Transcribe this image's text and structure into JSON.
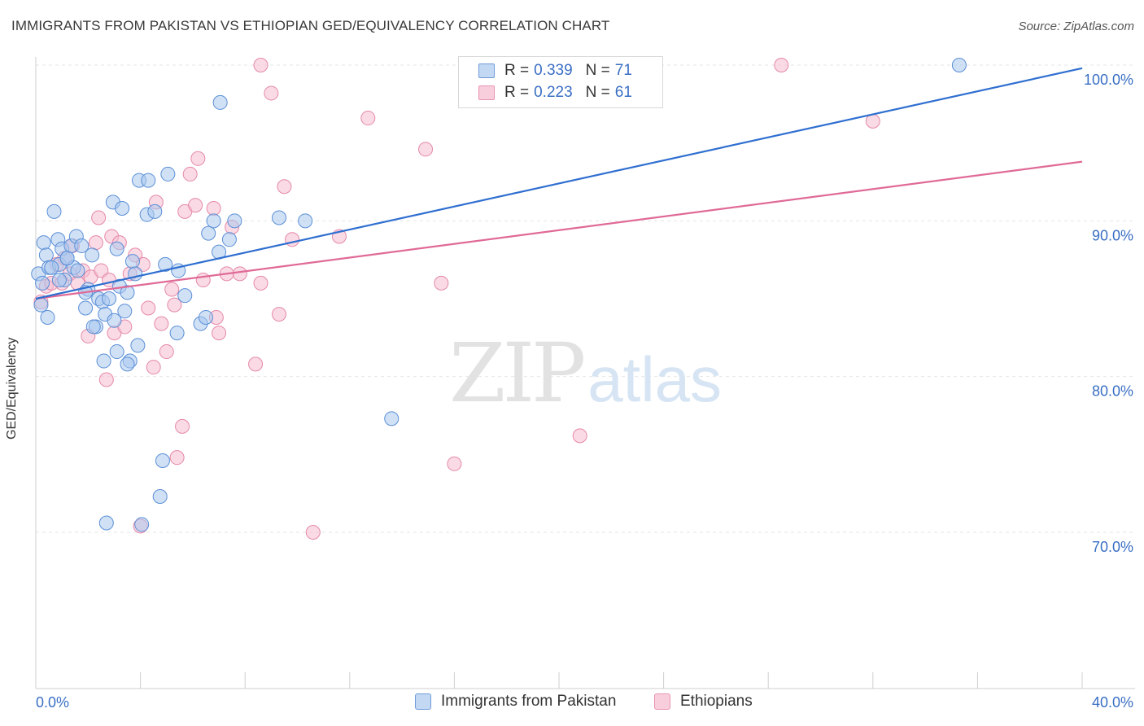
{
  "header": {
    "title": "IMMIGRANTS FROM PAKISTAN VS ETHIOPIAN GED/EQUIVALENCY CORRELATION CHART",
    "source": "Source: ZipAtlas.com"
  },
  "watermark": {
    "zip": "ZIP",
    "atlas": "atlas"
  },
  "legend": {
    "rows": [
      {
        "r_label": "R =",
        "r_value": "0.339",
        "n_label": "N =",
        "n_value": "71"
      },
      {
        "r_label": "R =",
        "r_value": "0.223",
        "n_label": "N =",
        "n_value": "61"
      }
    ]
  },
  "colors": {
    "pakistan_fill": "#a9c8ee",
    "pakistan_stroke": "#5b8fd6",
    "pakistan_line": "#2f6fd0",
    "ethiopian_fill": "#f5bcd0",
    "ethiopian_stroke": "#e589a9",
    "ethiopian_line": "#e06a97",
    "tick_label": "#3a6fc4",
    "grid": "#e6e6e6"
  },
  "chart_data": {
    "type": "scatter",
    "title": "IMMIGRANTS FROM PAKISTAN VS ETHIOPIAN GED/EQUIVALENCY CORRELATION CHART",
    "xlabel": "",
    "ylabel": "GED/Equivalency",
    "xlim": [
      0,
      40
    ],
    "ylim": [
      60,
      102
    ],
    "x_tick_labels": [
      "0.0%",
      "40.0%"
    ],
    "y_ticks": [
      70,
      80,
      90,
      100
    ],
    "y_tick_labels": [
      "70.0%",
      "80.0%",
      "90.0%",
      "100.0%"
    ],
    "grid": true,
    "legend_position": "top-center",
    "series": [
      {
        "name": "Immigrants from Pakistan",
        "r": 0.339,
        "n": 71,
        "trend": {
          "x": [
            0,
            40
          ],
          "y": [
            85.0,
            99.8
          ]
        },
        "points": [
          [
            0.1,
            86.6
          ],
          [
            0.2,
            84.6
          ],
          [
            0.25,
            86.0
          ],
          [
            0.3,
            88.6
          ],
          [
            0.4,
            87.8
          ],
          [
            0.45,
            83.8
          ],
          [
            0.5,
            87.0
          ],
          [
            0.7,
            90.6
          ],
          [
            0.85,
            88.8
          ],
          [
            0.9,
            87.2
          ],
          [
            1.0,
            88.2
          ],
          [
            1.1,
            86.2
          ],
          [
            1.2,
            87.6
          ],
          [
            1.35,
            88.4
          ],
          [
            1.45,
            87.0
          ],
          [
            1.55,
            89.0
          ],
          [
            1.6,
            86.8
          ],
          [
            1.75,
            88.4
          ],
          [
            1.9,
            84.4
          ],
          [
            2.0,
            85.6
          ],
          [
            2.15,
            87.8
          ],
          [
            2.3,
            83.2
          ],
          [
            2.4,
            85.0
          ],
          [
            2.55,
            84.8
          ],
          [
            2.65,
            84.0
          ],
          [
            2.8,
            85.0
          ],
          [
            2.95,
            91.2
          ],
          [
            3.0,
            83.6
          ],
          [
            3.1,
            81.6
          ],
          [
            3.2,
            85.8
          ],
          [
            3.3,
            90.8
          ],
          [
            3.4,
            84.2
          ],
          [
            3.5,
            85.4
          ],
          [
            3.6,
            81.0
          ],
          [
            3.7,
            87.4
          ],
          [
            3.8,
            86.6
          ],
          [
            3.9,
            82.0
          ],
          [
            3.95,
            92.6
          ],
          [
            4.05,
            70.5
          ],
          [
            4.25,
            90.4
          ],
          [
            4.3,
            92.6
          ],
          [
            4.55,
            90.6
          ],
          [
            4.75,
            72.3
          ],
          [
            4.85,
            74.6
          ],
          [
            4.95,
            87.2
          ],
          [
            5.05,
            93.0
          ],
          [
            5.4,
            82.8
          ],
          [
            5.45,
            86.8
          ],
          [
            5.7,
            85.2
          ],
          [
            6.3,
            83.4
          ],
          [
            6.5,
            83.8
          ],
          [
            6.6,
            89.2
          ],
          [
            6.8,
            90.0
          ],
          [
            7.0,
            88.0
          ],
          [
            7.05,
            97.6
          ],
          [
            7.4,
            88.8
          ],
          [
            7.6,
            90.0
          ],
          [
            9.3,
            90.2
          ],
          [
            10.3,
            90.0
          ],
          [
            2.7,
            70.6
          ],
          [
            2.6,
            81.0
          ],
          [
            2.2,
            83.2
          ],
          [
            1.9,
            85.4
          ],
          [
            1.2,
            87.6
          ],
          [
            0.6,
            87.0
          ],
          [
            0.9,
            86.2
          ],
          [
            3.1,
            88.2
          ],
          [
            3.5,
            80.8
          ],
          [
            16.5,
            100.0
          ],
          [
            35.3,
            100.0
          ],
          [
            13.6,
            77.3
          ]
        ]
      },
      {
        "name": "Ethiopians",
        "r": 0.223,
        "n": 61,
        "trend": {
          "x": [
            0,
            40
          ],
          "y": [
            85.0,
            93.8
          ]
        },
        "points": [
          [
            0.2,
            84.8
          ],
          [
            0.4,
            85.8
          ],
          [
            0.6,
            86.0
          ],
          [
            0.8,
            87.2
          ],
          [
            1.1,
            87.6
          ],
          [
            1.3,
            86.6
          ],
          [
            1.4,
            88.4
          ],
          [
            1.6,
            86.0
          ],
          [
            1.8,
            86.8
          ],
          [
            2.0,
            82.6
          ],
          [
            2.1,
            86.4
          ],
          [
            2.3,
            88.6
          ],
          [
            2.4,
            90.2
          ],
          [
            2.5,
            86.8
          ],
          [
            2.7,
            79.8
          ],
          [
            2.9,
            89.0
          ],
          [
            3.0,
            82.8
          ],
          [
            3.2,
            88.6
          ],
          [
            3.4,
            83.2
          ],
          [
            3.6,
            86.6
          ],
          [
            3.8,
            87.8
          ],
          [
            4.1,
            87.2
          ],
          [
            4.3,
            84.4
          ],
          [
            4.5,
            80.6
          ],
          [
            4.6,
            91.2
          ],
          [
            4.8,
            83.4
          ],
          [
            5.0,
            81.6
          ],
          [
            5.2,
            85.6
          ],
          [
            5.3,
            84.6
          ],
          [
            5.6,
            76.8
          ],
          [
            5.7,
            90.6
          ],
          [
            5.9,
            93.0
          ],
          [
            6.1,
            91.0
          ],
          [
            6.2,
            94.0
          ],
          [
            6.4,
            86.2
          ],
          [
            6.8,
            90.8
          ],
          [
            6.9,
            83.8
          ],
          [
            7.0,
            82.8
          ],
          [
            7.3,
            86.6
          ],
          [
            7.5,
            89.6
          ],
          [
            7.8,
            86.6
          ],
          [
            8.4,
            80.8
          ],
          [
            8.6,
            86.0
          ],
          [
            9.0,
            98.2
          ],
          [
            9.3,
            84.0
          ],
          [
            9.5,
            92.2
          ],
          [
            9.8,
            88.8
          ],
          [
            10.6,
            70.0
          ],
          [
            11.6,
            89.0
          ],
          [
            12.7,
            96.6
          ],
          [
            14.9,
            94.6
          ],
          [
            15.5,
            86.0
          ],
          [
            16.0,
            74.4
          ],
          [
            20.8,
            76.2
          ],
          [
            28.5,
            100.0
          ],
          [
            32.0,
            96.4
          ],
          [
            8.6,
            100.0
          ],
          [
            4.0,
            70.4
          ],
          [
            5.4,
            74.8
          ],
          [
            2.8,
            86.2
          ],
          [
            1.0,
            86.0
          ]
        ]
      }
    ]
  },
  "bottom_legend": {
    "pakistan_label": "Immigrants from Pakistan",
    "ethiopian_label": "Ethiopians"
  }
}
